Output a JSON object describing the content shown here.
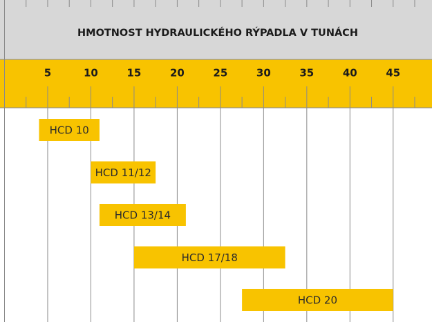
{
  "chart_data": {
    "type": "range-bar",
    "title": "HMOTNOST HYDRAULICKÉHO RÝPADLA V TUNÁCH",
    "categories": [
      "HCD 10",
      "HCD 11/12",
      "HCD 13/14",
      "HCD 17/18",
      "HCD 20"
    ],
    "start": [
      4,
      10,
      11,
      15,
      27.5
    ],
    "end": [
      11,
      17.5,
      21,
      32.5,
      45
    ],
    "color": "#f8c300",
    "xlim": [
      0,
      49.5
    ],
    "xticks": [
      5,
      10,
      15,
      20,
      25,
      30,
      35,
      40,
      45
    ],
    "xticks_minor": [
      2.5,
      7.5,
      12.5,
      17.5,
      22.5,
      27.5,
      32.5,
      37.5,
      42.5,
      47.5
    ],
    "grid": true
  }
}
